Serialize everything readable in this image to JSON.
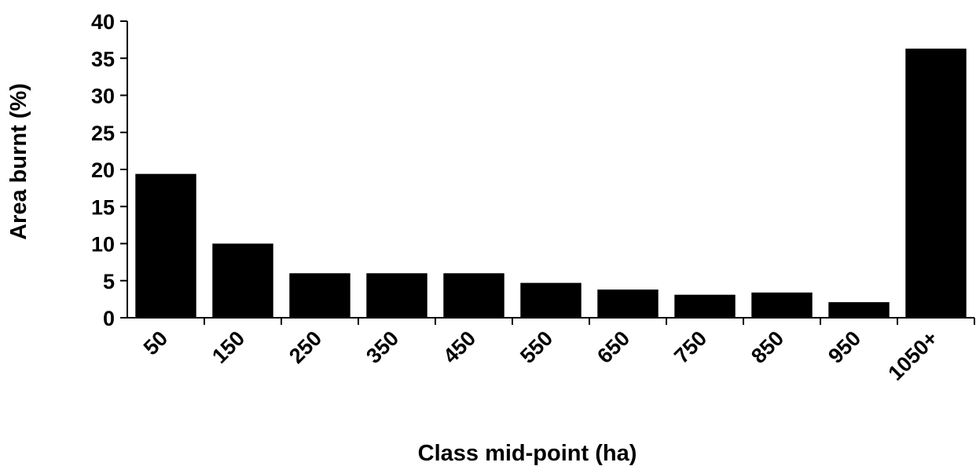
{
  "chart_data": {
    "type": "bar",
    "title": "",
    "xlabel": "Class mid-point (ha)",
    "ylabel": "Area burnt (%)",
    "categories": [
      "50",
      "150",
      "250",
      "350",
      "450",
      "550",
      "650",
      "750",
      "850",
      "950",
      "1050+"
    ],
    "values": [
      19.4,
      10.0,
      6.0,
      6.0,
      6.0,
      4.7,
      3.8,
      3.1,
      3.4,
      2.1,
      36.3
    ],
    "ylim": [
      0,
      40
    ],
    "yticks": [
      0,
      5,
      10,
      15,
      20,
      25,
      30,
      35,
      40
    ],
    "grid": false,
    "legend": "none",
    "bar_color": "#000000"
  }
}
